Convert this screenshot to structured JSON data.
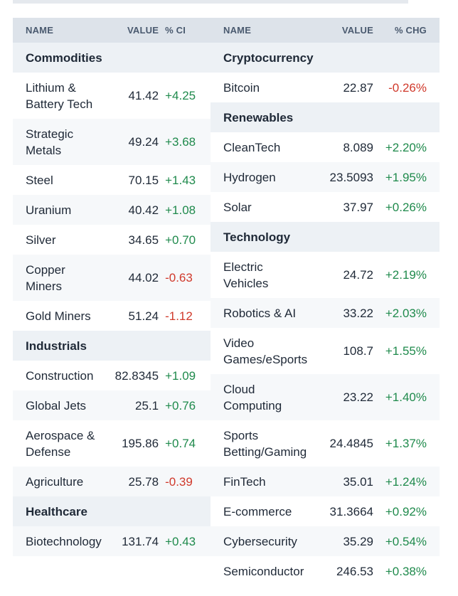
{
  "headers": {
    "name": "NAME",
    "value": "VALUE",
    "chg_left": "% CI",
    "chg_right": "% CHG"
  },
  "colors": {
    "positive": "#1f8a4c",
    "negative": "#d0392b",
    "header_bg": "#dde3ea",
    "section_bg": "#edf1f5"
  },
  "left_rows": [
    {
      "kind": "section",
      "name": "Commodities"
    },
    {
      "kind": "item",
      "name": "Lithium &\nBattery Tech",
      "value": "41.42",
      "chg": "+4.25"
    },
    {
      "kind": "item",
      "name": "Strategic\nMetals",
      "value": "49.24",
      "chg": "+3.68"
    },
    {
      "kind": "item",
      "name": "Steel",
      "value": "70.15",
      "chg": "+1.43"
    },
    {
      "kind": "item",
      "name": "Uranium",
      "value": "40.42",
      "chg": "+1.08"
    },
    {
      "kind": "item",
      "name": "Silver",
      "value": "34.65",
      "chg": "+0.70"
    },
    {
      "kind": "item",
      "name": "Copper\nMiners",
      "value": "44.02",
      "chg": "-0.63"
    },
    {
      "kind": "item",
      "name": "Gold Miners",
      "value": "51.24",
      "chg": "-1.12"
    },
    {
      "kind": "section",
      "name": "Industrials"
    },
    {
      "kind": "item",
      "name": "Construction",
      "value": "82.8345",
      "chg": "+1.09"
    },
    {
      "kind": "item",
      "name": "Global Jets",
      "value": "25.1",
      "chg": "+0.76"
    },
    {
      "kind": "item",
      "name": "Aerospace &\nDefense",
      "value": "195.86",
      "chg": "+0.74"
    },
    {
      "kind": "item",
      "name": "Agriculture",
      "value": "25.78",
      "chg": "-0.39"
    },
    {
      "kind": "section",
      "name": "Healthcare"
    },
    {
      "kind": "item",
      "name": "Biotechnology",
      "value": "131.74",
      "chg": "+0.43"
    }
  ],
  "right_rows": [
    {
      "kind": "section",
      "name": "Cryptocurrency"
    },
    {
      "kind": "item",
      "name": "Bitcoin",
      "value": "22.87",
      "chg": "-0.26%"
    },
    {
      "kind": "section",
      "name": "Renewables"
    },
    {
      "kind": "item",
      "name": "CleanTech",
      "value": "8.089",
      "chg": "+2.20%"
    },
    {
      "kind": "item",
      "name": "Hydrogen",
      "value": "23.5093",
      "chg": "+1.95%"
    },
    {
      "kind": "item",
      "name": "Solar",
      "value": "37.97",
      "chg": "+0.26%"
    },
    {
      "kind": "section",
      "name": "Technology"
    },
    {
      "kind": "item",
      "name": "Electric\nVehicles",
      "value": "24.72",
      "chg": "+2.19%"
    },
    {
      "kind": "item",
      "name": "Robotics & AI",
      "value": "33.22",
      "chg": "+2.03%"
    },
    {
      "kind": "item",
      "name": "Video\nGames/eSports",
      "value": "108.7",
      "chg": "+1.55%"
    },
    {
      "kind": "item",
      "name": "Cloud\nComputing",
      "value": "23.22",
      "chg": "+1.40%"
    },
    {
      "kind": "item",
      "name": "Sports\nBetting/Gaming",
      "value": "24.4845",
      "chg": "+1.37%"
    },
    {
      "kind": "item",
      "name": "FinTech",
      "value": "35.01",
      "chg": "+1.24%"
    },
    {
      "kind": "item",
      "name": "E-commerce",
      "value": "31.3664",
      "chg": "+0.92%"
    },
    {
      "kind": "item",
      "name": "Cybersecurity",
      "value": "35.29",
      "chg": "+0.54%"
    },
    {
      "kind": "item",
      "name": "Semiconductor",
      "value": "246.53",
      "chg": "+0.38%"
    }
  ]
}
